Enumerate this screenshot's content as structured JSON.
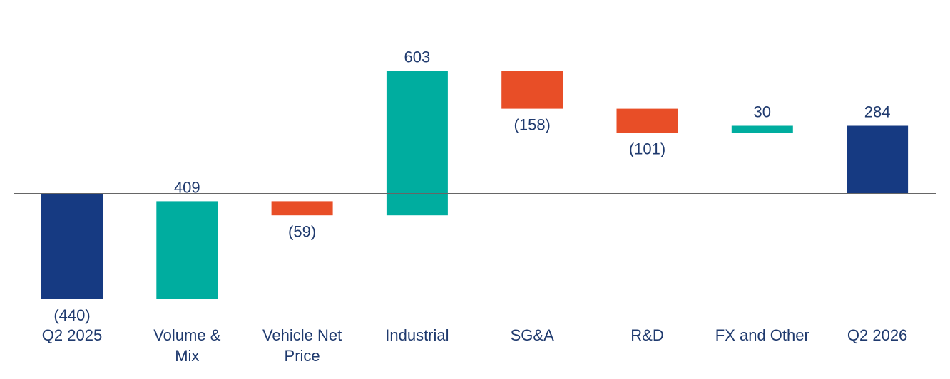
{
  "chart_data": {
    "type": "bar",
    "subtype": "waterfall",
    "title": "",
    "xlabel": "",
    "ylabel": "",
    "grid": false,
    "colors": {
      "total": "#163a82",
      "increase": "#00ad9f",
      "decrease": "#e84e27",
      "axis": "#666666",
      "text": "#1f3a6e"
    },
    "ylim": [
      -480,
      650
    ],
    "steps": [
      {
        "category": [
          "Q2 2025"
        ],
        "value": -440,
        "label": "(440)",
        "kind": "total"
      },
      {
        "category": [
          "Volume &",
          "Mix"
        ],
        "value": 409,
        "label": "409",
        "kind": "increase"
      },
      {
        "category": [
          "Vehicle Net",
          "Price"
        ],
        "value": -59,
        "label": "(59)",
        "kind": "decrease"
      },
      {
        "category": [
          "Industrial"
        ],
        "value": 603,
        "label": "603",
        "kind": "increase"
      },
      {
        "category": [
          "SG&A"
        ],
        "value": -158,
        "label": "(158)",
        "kind": "decrease"
      },
      {
        "category": [
          "R&D"
        ],
        "value": -101,
        "label": "(101)",
        "kind": "decrease"
      },
      {
        "category": [
          "FX and Other"
        ],
        "value": 30,
        "label": "30",
        "kind": "increase"
      },
      {
        "category": [
          "Q2 2026"
        ],
        "value": 284,
        "label": "284",
        "kind": "total"
      }
    ]
  }
}
